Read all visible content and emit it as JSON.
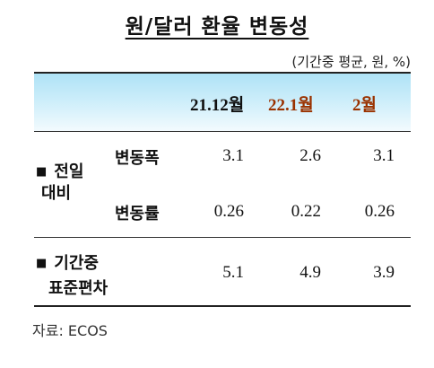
{
  "title": "원/달러 환율 변동성",
  "unit_note": "(기간중 평균, 원, %)",
  "columns": [
    "21.12월",
    "22.1월",
    "2월"
  ],
  "rows": [
    {
      "group_line1": "전일",
      "group_line2": "대비",
      "label": "변동폭",
      "values": [
        "3.1",
        "2.6",
        "3.1"
      ]
    },
    {
      "label": "변동률",
      "values": [
        "0.26",
        "0.22",
        "0.26"
      ]
    },
    {
      "group_line1": "기간중",
      "group_line2": "표준편차",
      "values": [
        "5.1",
        "4.9",
        "3.9"
      ]
    }
  ],
  "bullet": "■",
  "source": "자료: ECOS",
  "colors": {
    "header_bg": "#aee2f6",
    "highlight_text": "#9a3200"
  }
}
